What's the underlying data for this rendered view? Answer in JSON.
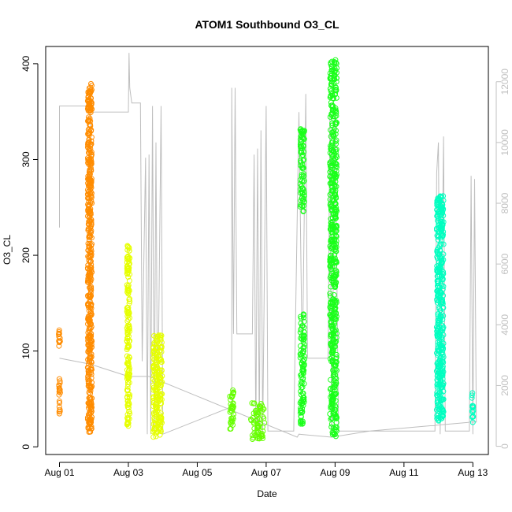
{
  "chart_data": {
    "type": "scatter",
    "title": "ATOM1 Southbound O3_CL",
    "xlabel": "Date",
    "ylabel": "O3_CL",
    "x_ticks": [
      "Aug 01",
      "Aug 03",
      "Aug 05",
      "Aug 07",
      "Aug 09",
      "Aug 11",
      "Aug 13"
    ],
    "x_tick_days": [
      1,
      3,
      5,
      7,
      9,
      11,
      13
    ],
    "xlim_days": [
      0.6,
      13.45
    ],
    "ylim": [
      -8,
      418
    ],
    "y_ticks": [
      0,
      100,
      200,
      300,
      400
    ],
    "y2lim": [
      -270,
      13160
    ],
    "y2_ticks": [
      0,
      2000,
      4000,
      6000,
      8000,
      10000,
      12000
    ],
    "grid": false,
    "colors": {
      "orange": "#ff8c00",
      "yellow": "#e6ff00",
      "lime": "#66ff00",
      "green": "#1aff1a",
      "cyan": "#00ffc0",
      "altitude_line": "#bebebe",
      "right_axis": "#c0c0c0"
    },
    "o3_clusters": [
      {
        "day": 1.0,
        "spread": 0.02,
        "ranges": [
          [
            30,
            72
          ],
          [
            98,
            127
          ]
        ],
        "color": "orange",
        "density": 1
      },
      {
        "day": 1.88,
        "spread": 0.06,
        "ranges": [
          [
            15,
            60
          ],
          [
            60,
            130
          ],
          [
            130,
            380
          ]
        ],
        "color": "orange",
        "density": 3
      },
      {
        "day": 3.0,
        "spread": 0.04,
        "ranges": [
          [
            20,
            78
          ],
          [
            78,
            130
          ],
          [
            130,
            210
          ]
        ],
        "color": "yellow",
        "density": 2
      },
      {
        "day": 3.85,
        "spread": 0.13,
        "ranges": [
          [
            10,
            65
          ],
          [
            65,
            118
          ]
        ],
        "color": "yellow",
        "density": 4
      },
      {
        "day": 6.0,
        "spread": 0.06,
        "ranges": [
          [
            18,
            60
          ]
        ],
        "color": "lime",
        "density": 2
      },
      {
        "day": 6.75,
        "spread": 0.2,
        "ranges": [
          [
            8,
            46
          ]
        ],
        "color": "lime",
        "density": 4
      },
      {
        "day": 8.05,
        "spread": 0.06,
        "ranges": [
          [
            22,
            40
          ],
          [
            40,
            140
          ],
          [
            245,
            333
          ]
        ],
        "color": "green",
        "density": 2
      },
      {
        "day": 8.95,
        "spread": 0.1,
        "ranges": [
          [
            10,
            50
          ],
          [
            50,
            200
          ],
          [
            200,
            360
          ],
          [
            360,
            404
          ]
        ],
        "color": "green",
        "density": 3
      },
      {
        "day": 12.05,
        "spread": 0.1,
        "ranges": [
          [
            27,
            70
          ],
          [
            70,
            160
          ],
          [
            160,
            262
          ]
        ],
        "color": "cyan",
        "density": 4
      },
      {
        "day": 13.0,
        "spread": 0.03,
        "ranges": [
          [
            25,
            58
          ]
        ],
        "color": "cyan",
        "density": 1
      }
    ],
    "altitude_path": [
      [
        1.0,
        7200
      ],
      [
        1.0,
        11200
      ],
      [
        1.9,
        11200
      ],
      [
        1.9,
        2000
      ],
      [
        1.9,
        11000
      ],
      [
        3.0,
        11000
      ],
      [
        3.02,
        12950
      ],
      [
        3.04,
        11800
      ],
      [
        3.1,
        11300
      ],
      [
        3.35,
        11300
      ],
      [
        3.4,
        2800
      ],
      [
        3.5,
        9500
      ],
      [
        3.55,
        400
      ],
      [
        3.6,
        9600
      ],
      [
        3.65,
        400
      ],
      [
        3.7,
        11200
      ],
      [
        3.75,
        400
      ],
      [
        3.8,
        10000
      ],
      [
        3.85,
        500
      ],
      [
        3.95,
        11200
      ],
      [
        4.0,
        400
      ],
      [
        6.0,
        1300
      ],
      [
        6.0,
        11800
      ],
      [
        6.05,
        3700
      ],
      [
        6.1,
        11800
      ],
      [
        6.15,
        3700
      ],
      [
        6.6,
        3700
      ],
      [
        6.65,
        9600
      ],
      [
        6.7,
        300
      ],
      [
        6.75,
        9800
      ],
      [
        6.8,
        300
      ],
      [
        6.85,
        10400
      ],
      [
        6.9,
        400
      ],
      [
        7.0,
        11200
      ],
      [
        7.05,
        500
      ],
      [
        7.8,
        500
      ],
      [
        7.95,
        11000
      ],
      [
        8.05,
        2600
      ],
      [
        8.15,
        11600
      ],
      [
        8.2,
        2900
      ],
      [
        8.8,
        2900
      ],
      [
        8.85,
        11000
      ],
      [
        8.9,
        400
      ],
      [
        9.0,
        11000
      ],
      [
        9.1,
        500
      ],
      [
        11.9,
        500
      ],
      [
        11.95,
        9000
      ],
      [
        12.0,
        10000
      ],
      [
        12.05,
        400
      ],
      [
        12.15,
        10200
      ],
      [
        12.2,
        500
      ],
      [
        12.9,
        500
      ],
      [
        12.95,
        8900
      ],
      [
        13.0,
        400
      ],
      [
        13.05,
        8800
      ],
      [
        13.1,
        800
      ],
      [
        13.0,
        800
      ],
      [
        10.0,
        500
      ],
      [
        8.9,
        300
      ],
      [
        7.95,
        400
      ],
      [
        7.9,
        300
      ],
      [
        3.6,
        2300
      ],
      [
        3.0,
        2300
      ],
      [
        1.9,
        2700
      ],
      [
        1.0,
        2900
      ]
    ]
  }
}
